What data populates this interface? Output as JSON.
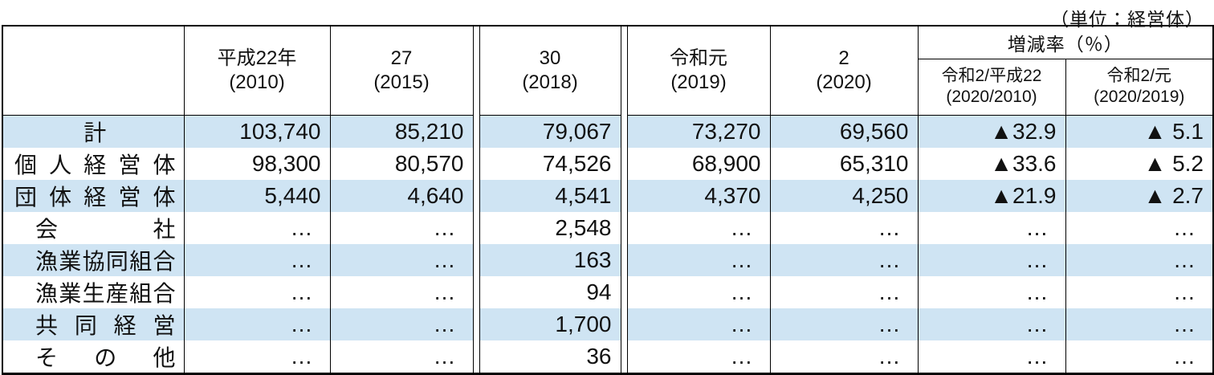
{
  "unit_note": "（単位：経営体）",
  "table": {
    "band_color": "#cfe4f3",
    "year_columns": [
      {
        "line1": "平成22年",
        "line2": "(2010)"
      },
      {
        "line1": "27",
        "line2": "(2015)"
      },
      {
        "line1": "30",
        "line2": "(2018)"
      },
      {
        "line1": "令和元",
        "line2": "(2019)"
      },
      {
        "line1": "2",
        "line2": "(2020)"
      }
    ],
    "rate_header": "増減率（％）",
    "rate_columns": [
      {
        "line1": "令和2/平成22",
        "line2": "(2020/2010)"
      },
      {
        "line1": "令和2/元",
        "line2": "(2020/2019)"
      }
    ],
    "rows": [
      {
        "label": "計",
        "level": 0,
        "values": [
          "103,740",
          "85,210",
          "79,067",
          "73,270",
          "69,560",
          "▲32.9",
          "▲ 5.1"
        ]
      },
      {
        "label": "個人経営体",
        "level": 0,
        "values": [
          "98,300",
          "80,570",
          "74,526",
          "68,900",
          "65,310",
          "▲33.6",
          "▲ 5.2"
        ]
      },
      {
        "label": "団体経営体",
        "level": 0,
        "values": [
          "5,440",
          "4,640",
          "4,541",
          "4,370",
          "4,250",
          "▲21.9",
          "▲ 2.7"
        ]
      },
      {
        "label": "会社",
        "level": 1,
        "values": [
          "…",
          "…",
          "2,548",
          "…",
          "…",
          "…",
          "…"
        ]
      },
      {
        "label": "漁業協同組合",
        "level": 1,
        "values": [
          "…",
          "…",
          "163",
          "…",
          "…",
          "…",
          "…"
        ]
      },
      {
        "label": "漁業生産組合",
        "level": 1,
        "values": [
          "…",
          "…",
          "94",
          "…",
          "…",
          "…",
          "…"
        ]
      },
      {
        "label": "共同経営",
        "level": 1,
        "values": [
          "…",
          "…",
          "1,700",
          "…",
          "…",
          "…",
          "…"
        ]
      },
      {
        "label": "その他",
        "level": 1,
        "values": [
          "…",
          "…",
          "36",
          "…",
          "…",
          "…",
          "…"
        ]
      }
    ]
  }
}
